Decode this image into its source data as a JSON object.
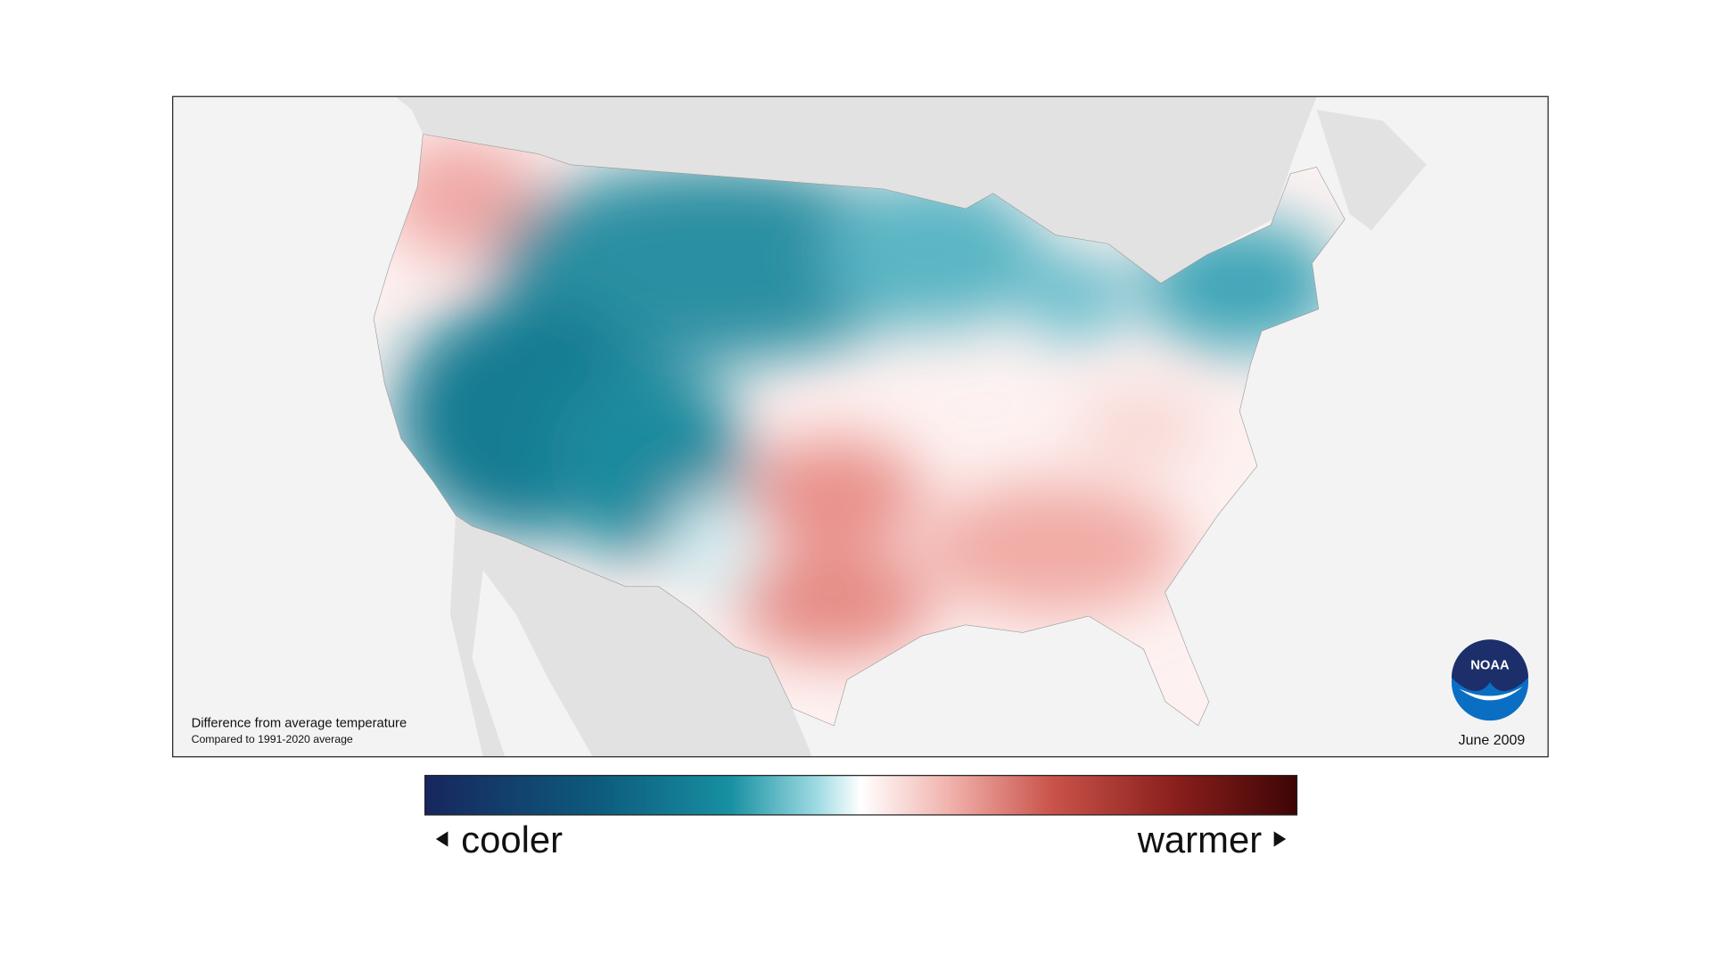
{
  "map": {
    "caption": {
      "title": "Difference from average temperature",
      "subtitle": "Compared to 1991-2020 average"
    },
    "date": "June 2009",
    "logo": "NOAA"
  },
  "legend": {
    "low": "cooler",
    "high": "warmer"
  }
}
